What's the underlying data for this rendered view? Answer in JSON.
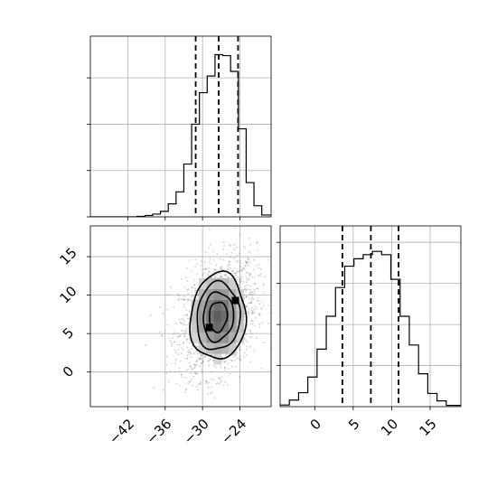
{
  "chart_data": [
    {
      "panel": "marginal-x",
      "type": "histogram",
      "grid": true,
      "xlim": [
        -48,
        -19
      ],
      "bins": [
        {
          "x0": -48.0,
          "x1": -46.75,
          "y": 0.0
        },
        {
          "x0": -46.75,
          "x1": -45.5,
          "y": 0.0
        },
        {
          "x0": -45.5,
          "x1": -44.25,
          "y": 0.0
        },
        {
          "x0": -44.25,
          "x1": -43.0,
          "y": 0.0
        },
        {
          "x0": -43.0,
          "x1": -41.75,
          "y": 0.0
        },
        {
          "x0": -41.75,
          "x1": -40.5,
          "y": 0.0
        },
        {
          "x0": -40.5,
          "x1": -39.25,
          "y": 0.5
        },
        {
          "x0": -39.25,
          "x1": -38.0,
          "y": 1.5
        },
        {
          "x0": -38.0,
          "x1": -36.75,
          "y": 3.0
        },
        {
          "x0": -36.75,
          "x1": -35.5,
          "y": 6.0
        },
        {
          "x0": -35.5,
          "x1": -34.25,
          "y": 14.0
        },
        {
          "x0": -34.25,
          "x1": -33.0,
          "y": 27.0
        },
        {
          "x0": -33.0,
          "x1": -31.75,
          "y": 57.0
        },
        {
          "x0": -31.75,
          "x1": -30.5,
          "y": 100.0
        },
        {
          "x0": -30.5,
          "x1": -29.25,
          "y": 134.0
        },
        {
          "x0": -29.25,
          "x1": -28.0,
          "y": 152.0
        },
        {
          "x0": -28.0,
          "x1": -26.75,
          "y": 175.0
        },
        {
          "x0": -26.75,
          "x1": -25.5,
          "y": 174.0
        },
        {
          "x0": -25.5,
          "x1": -24.25,
          "y": 157.0
        },
        {
          "x0": -24.25,
          "x1": -23.0,
          "y": 95.0
        },
        {
          "x0": -23.0,
          "x1": -21.75,
          "y": 37.0
        },
        {
          "x0": -21.75,
          "x1": -20.5,
          "y": 12.0
        },
        {
          "x0": -20.5,
          "x1": -19.0,
          "y": 2.0
        }
      ],
      "ylim": [
        0,
        195
      ],
      "quantiles": [
        -31.1,
        -27.4,
        -24.3
      ]
    },
    {
      "panel": "joint",
      "type": "heatmap",
      "grid": true,
      "xlim": [
        -48,
        -19
      ],
      "ylim": [
        -4.5,
        19
      ],
      "xticks": [
        -42,
        -36,
        -30,
        -24
      ],
      "yticks": [
        0,
        5,
        10,
        15
      ],
      "contour_center": [
        -27.5,
        7.2
      ],
      "contour_radii": [
        [
          2.9,
          4.0
        ],
        [
          4.9,
          6.5
        ],
        [
          7.0,
          9.0
        ],
        [
          9.0,
          11.5
        ]
      ]
    },
    {
      "panel": "marginal-y",
      "type": "histogram",
      "grid": true,
      "xlim": [
        -4.5,
        19
      ],
      "xticks": [
        0,
        5,
        10,
        15
      ],
      "bins": [
        {
          "x0": -4.5,
          "x1": -3.3,
          "y": 2.0
        },
        {
          "x0": -3.3,
          "x1": -2.1,
          "y": 8.0
        },
        {
          "x0": -2.1,
          "x1": -0.9,
          "y": 17.0
        },
        {
          "x0": -0.9,
          "x1": 0.3,
          "y": 36.0
        },
        {
          "x0": 0.3,
          "x1": 1.5,
          "y": 70.0
        },
        {
          "x0": 1.5,
          "x1": 2.7,
          "y": 110.0
        },
        {
          "x0": 2.7,
          "x1": 3.9,
          "y": 145.0
        },
        {
          "x0": 3.9,
          "x1": 5.1,
          "y": 171.0
        },
        {
          "x0": 5.1,
          "x1": 6.3,
          "y": 180.0
        },
        {
          "x0": 6.3,
          "x1": 7.5,
          "y": 185.0
        },
        {
          "x0": 7.5,
          "x1": 8.7,
          "y": 189.0
        },
        {
          "x0": 8.7,
          "x1": 9.9,
          "y": 185.0
        },
        {
          "x0": 9.9,
          "x1": 11.1,
          "y": 155.0
        },
        {
          "x0": 11.1,
          "x1": 12.3,
          "y": 110.0
        },
        {
          "x0": 12.3,
          "x1": 13.5,
          "y": 75.0
        },
        {
          "x0": 13.5,
          "x1": 14.7,
          "y": 40.0
        },
        {
          "x0": 14.7,
          "x1": 15.9,
          "y": 16.0
        },
        {
          "x0": 15.9,
          "x1": 17.1,
          "y": 7.0
        },
        {
          "x0": 17.1,
          "x1": 19.0,
          "y": 1.5
        }
      ],
      "ylim": [
        0,
        220
      ],
      "quantiles": [
        3.6,
        7.3,
        10.9
      ]
    }
  ]
}
